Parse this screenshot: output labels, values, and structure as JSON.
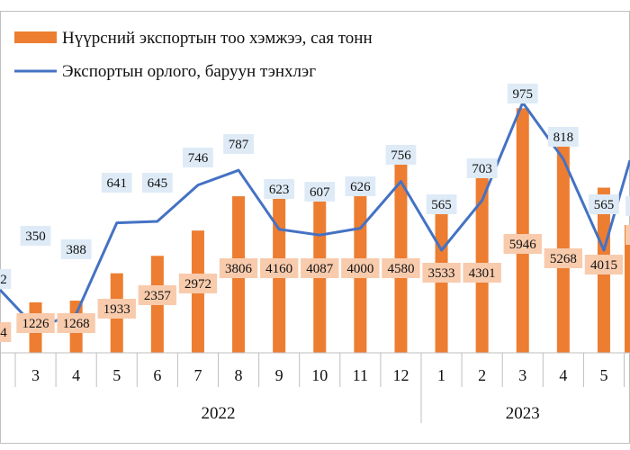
{
  "chart_data": {
    "type": "bar",
    "categories": [
      "3",
      "4",
      "5",
      "6",
      "7",
      "8",
      "9",
      "10",
      "11",
      "12",
      "1",
      "2",
      "3",
      "4",
      "5"
    ],
    "groups": [
      {
        "label": "2022"
      },
      {
        "label": "2023"
      }
    ],
    "series": [
      {
        "name": "Нүүрсний экспортын тоо хэмжээ, сая тонн",
        "type": "bar",
        "color": "#ED7D31",
        "values": [
          1226,
          1268,
          1933,
          2357,
          2972,
          3806,
          4160,
          4087,
          4000,
          4580,
          3533,
          4301,
          5946,
          5268,
          4015
        ],
        "labels": [
          "1226",
          "1268",
          "1933",
          "2357",
          "2972",
          "3806",
          "4160",
          "4087",
          "4000",
          "4580",
          "3533",
          "4301",
          "5946",
          "5268",
          "4015"
        ]
      },
      {
        "name": "Экспортын орлого, баруун тэнхлэг",
        "type": "line",
        "color": "#4472C4",
        "values": [
          350,
          388,
          641,
          645,
          746,
          787,
          623,
          607,
          626,
          756,
          565,
          703,
          975,
          818,
          565
        ],
        "labels": [
          "350",
          "388",
          "641",
          "645",
          "746",
          "787",
          "623",
          "607",
          "626",
          "756",
          "565",
          "703",
          "975",
          "818",
          "565"
        ]
      }
    ],
    "partial_labels": {
      "left_line": "2",
      "left_bar": "4"
    },
    "legend_position": "top-left",
    "grid": false
  }
}
